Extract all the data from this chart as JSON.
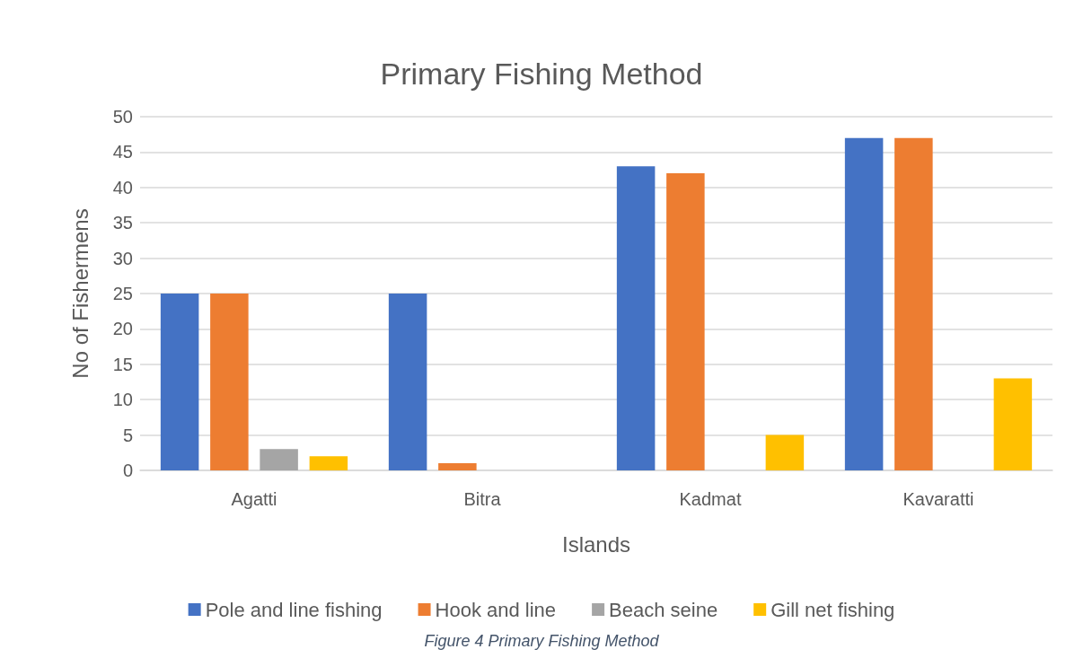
{
  "chart_data": {
    "type": "bar",
    "title": "Primary Fishing Method",
    "xlabel": "Islands",
    "ylabel": "No of Fishermens",
    "categories": [
      "Agatti",
      "Bitra",
      "Kadmat",
      "Kavaratti"
    ],
    "series": [
      {
        "name": "Pole and line fishing",
        "color": "#4472c4",
        "values": [
          25,
          25,
          43,
          47
        ]
      },
      {
        "name": "Hook and line",
        "color": "#ed7d31",
        "values": [
          25,
          1,
          42,
          47
        ]
      },
      {
        "name": "Beach seine",
        "color": "#a5a5a5",
        "values": [
          3,
          0,
          0,
          0
        ]
      },
      {
        "name": "Gill net fishing",
        "color": "#ffc000",
        "values": [
          2,
          0,
          5,
          13
        ]
      }
    ],
    "ylim": [
      0,
      50
    ],
    "yticks": [
      0,
      5,
      10,
      15,
      20,
      25,
      30,
      35,
      40,
      45,
      50
    ],
    "grid": "y",
    "legend": "bottom",
    "annotations": [
      "Figure 4 Primary Fishing Method"
    ]
  }
}
